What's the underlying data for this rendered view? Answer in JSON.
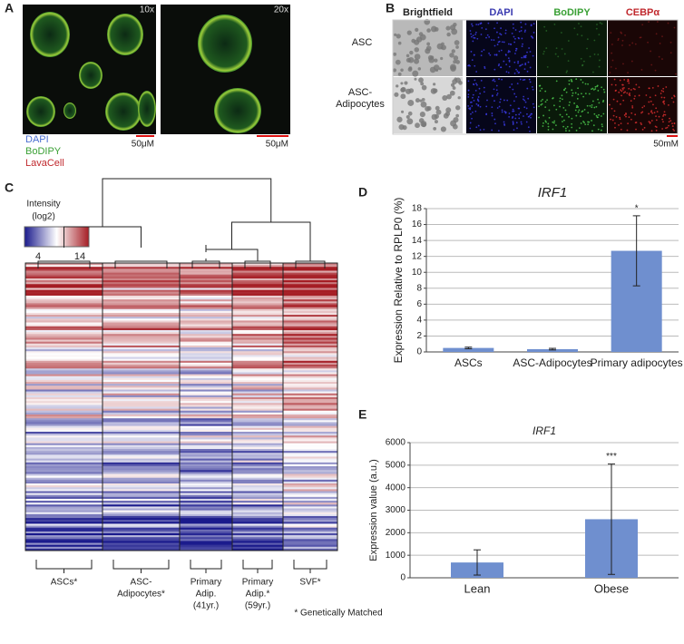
{
  "panel_labels": [
    "A",
    "B",
    "C",
    "D",
    "E"
  ],
  "panel_a": {
    "magnifications": [
      "10x",
      "20x"
    ],
    "scale_bars": [
      "50μM",
      "50μM"
    ],
    "stains": [
      {
        "name": "DAPI",
        "color": "#4a6fd0"
      },
      {
        "name": "BoDIPY",
        "color": "#3aa035"
      },
      {
        "name": "LavaCell",
        "color": "#c0282d"
      }
    ]
  },
  "panel_b": {
    "columns": [
      "Brightfield",
      "DAPI",
      "BoDIPY",
      "CEBPα"
    ],
    "column_colors": [
      "#222222",
      "#3b3bb0",
      "#3aa035",
      "#c0282d"
    ],
    "rows": [
      [
        "ASC"
      ],
      [
        "ASC-",
        "Adipocytes"
      ]
    ],
    "scale_bar": "50mM"
  },
  "panel_c": {
    "legend_title": [
      "Intensity",
      "(log2)"
    ],
    "legend_ticks": [
      4,
      14
    ],
    "groups": [
      [
        "ASCs*"
      ],
      [
        "ASC-",
        "Adipocytes*"
      ],
      [
        "Primary",
        "Adip.",
        "(41yr.)"
      ],
      [
        "Primary",
        "Adip.*",
        "(59yr.)"
      ],
      [
        "SVF*"
      ]
    ],
    "footnote": "* Genetically Matched"
  },
  "chart_data": [
    {
      "type": "bar",
      "title": "IRF1",
      "y_label": "Expression Relative to RPLP0 (%)",
      "categories": [
        "ASCs",
        "ASC-Adipocytes",
        "Primary adipocytes"
      ],
      "values": [
        0.5,
        0.35,
        12.7
      ],
      "errors": [
        0.1,
        0.1,
        4.4
      ],
      "significance": [
        null,
        null,
        "*"
      ],
      "color": "#6f8fcf",
      "ylim": [
        0,
        18
      ],
      "yticks": [
        0,
        2,
        4,
        6,
        8,
        10,
        12,
        14,
        16,
        18
      ],
      "grid": true
    },
    {
      "type": "bar",
      "title": "IRF1",
      "y_label": "Expression value (a.u.)",
      "categories": [
        "Lean",
        "Obese"
      ],
      "values": [
        680,
        2600
      ],
      "errors": [
        560,
        2450
      ],
      "significance": [
        null,
        "***"
      ],
      "color": "#6f8fcf",
      "ylim": [
        0,
        6000
      ],
      "yticks": [
        0,
        1000,
        2000,
        3000,
        4000,
        5000,
        6000
      ],
      "grid": true
    }
  ]
}
